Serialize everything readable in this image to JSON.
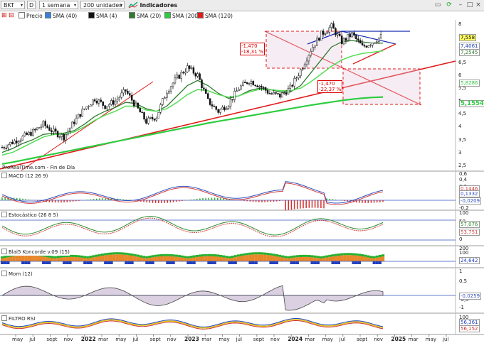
{
  "toolbar": {
    "symbol": "BKT",
    "period_marker": "D",
    "timeframe": "1 semana",
    "units": "200 unidades",
    "indicators_label": "Indicadores"
  },
  "legend": [
    {
      "label": "Precio",
      "color": "#ffffff"
    },
    {
      "label": "SMA (40)",
      "color": "#3b7fd8"
    },
    {
      "label": "SMA (4)",
      "color": "#111111"
    },
    {
      "label": "SMA (20)",
      "color": "#2f7a2f"
    },
    {
      "label": "SMA (200)",
      "color": "#2ecc40"
    },
    {
      "label": "SMA (120)",
      "color": "#e21b1b"
    }
  ],
  "main": {
    "credit": "ProRealTime.com - Fin de Día",
    "y_ticks": [
      "8",
      "7,5",
      "7",
      "6,5",
      "6",
      "5,5",
      "5",
      "4,5",
      "4",
      "3,5",
      "3",
      "2,5"
    ],
    "last_labels": [
      {
        "text": "7,558",
        "fill": "#ffff66",
        "color": "#000000"
      },
      {
        "text": "7,4061",
        "fill": "#ffffff",
        "color": "#1a3fb0"
      },
      {
        "text": "7,2545",
        "fill": "#ffffff",
        "color": "#2f7a2f"
      },
      {
        "text": "5,8286",
        "fill": "#ffffff",
        "color": "#2ecc40"
      },
      {
        "text": "5,1554",
        "fill": "#ffffff",
        "color": "#2ecc40"
      }
    ],
    "annotations": [
      {
        "text": "-1,470\n-18,31 %"
      },
      {
        "text": "-1,470\n-22,37 %"
      }
    ]
  },
  "panels": {
    "macd": {
      "label": "MACD (12 26 9)",
      "ticks": [
        "0,6",
        "0,4",
        "0,2",
        "0",
        "-0,2"
      ],
      "values": [
        "0,1446",
        "0,1332",
        "-0,0209"
      ]
    },
    "stoch": {
      "label": "Estocástico (26 8 5)",
      "ticks": [
        "100",
        "50",
        "0"
      ],
      "values": [
        "57,076",
        "53,751"
      ]
    },
    "koncorde": {
      "label": "Blai5 Koncorde v.09 (15)",
      "ticks": [
        "200",
        "100"
      ],
      "values": [
        "24,642"
      ]
    },
    "mom": {
      "label": "Mom (12)",
      "ticks": [
        "1",
        "0,5",
        "-0,5",
        "-1"
      ],
      "values": [
        "-0,0259"
      ]
    },
    "rsi": {
      "label": "FILTRO RSI",
      "ticks": [
        "100",
        "50"
      ],
      "values": [
        "56,361",
        "56,152"
      ]
    }
  },
  "x_axis": [
    {
      "label": "may",
      "year": false
    },
    {
      "label": "jul",
      "year": false
    },
    {
      "label": "sept",
      "year": false
    },
    {
      "label": "nov",
      "year": false
    },
    {
      "label": "2022",
      "year": true
    },
    {
      "label": "mar",
      "year": false
    },
    {
      "label": "may",
      "year": false
    },
    {
      "label": "jul",
      "year": false
    },
    {
      "label": "sept",
      "year": false
    },
    {
      "label": "nov",
      "year": false
    },
    {
      "label": "2023",
      "year": true
    },
    {
      "label": "mar",
      "year": false
    },
    {
      "label": "may",
      "year": false
    },
    {
      "label": "jul",
      "year": false
    },
    {
      "label": "sept",
      "year": false
    },
    {
      "label": "nov",
      "year": false
    },
    {
      "label": "2024",
      "year": true
    },
    {
      "label": "mar",
      "year": false
    },
    {
      "label": "may",
      "year": false
    },
    {
      "label": "jul",
      "year": false
    },
    {
      "label": "sept",
      "year": false
    },
    {
      "label": "nov",
      "year": false
    },
    {
      "label": "2025",
      "year": true
    },
    {
      "label": "mar",
      "year": false
    },
    {
      "label": "may",
      "year": false
    },
    {
      "label": "jul",
      "year": false
    }
  ],
  "chart_data": {
    "type": "line",
    "title": "",
    "series": [
      {
        "name": "Precio",
        "values": [
          3.2,
          3.4,
          3.6,
          3.8,
          4.1,
          3.8,
          3.6,
          4.2,
          4.7,
          5.1,
          4.8,
          5.0,
          5.4,
          4.8,
          4.2,
          4.4,
          5.4,
          5.9,
          6.3,
          6.0,
          5.0,
          4.6,
          4.9,
          5.5,
          5.8,
          5.6,
          5.3,
          5.2,
          5.5,
          6.2,
          7.0,
          7.6,
          7.9,
          7.3,
          7.6,
          7.1,
          7.3,
          7.56
        ]
      },
      {
        "name": "SMA (20)",
        "values": [
          3.0,
          3.15,
          3.35,
          3.5,
          3.7,
          3.75,
          3.75,
          3.85,
          4.1,
          4.4,
          4.6,
          4.75,
          4.95,
          4.9,
          4.7,
          4.6,
          4.8,
          5.2,
          5.6,
          5.8,
          5.6,
          5.3,
          5.1,
          5.2,
          5.4,
          5.5,
          5.45,
          5.35,
          5.35,
          5.6,
          6.1,
          6.6,
          7.1,
          7.3,
          7.35,
          7.3,
          7.25,
          7.25
        ]
      },
      {
        "name": "SMA (200)",
        "values": [
          2.55,
          2.62,
          2.7,
          2.78,
          2.86,
          2.94,
          3.02,
          3.1,
          3.18,
          3.26,
          3.34,
          3.42,
          3.5,
          3.58,
          3.66,
          3.74,
          3.82,
          3.9,
          3.98,
          4.06,
          4.14,
          4.21,
          4.28,
          4.35,
          4.42,
          4.49,
          4.56,
          4.63,
          4.7,
          4.77,
          4.84,
          4.9,
          4.96,
          5.02,
          5.07,
          5.11,
          5.14,
          5.1554
        ]
      }
    ],
    "ylim": [
      2.3,
      8.1
    ],
    "grid": false
  }
}
